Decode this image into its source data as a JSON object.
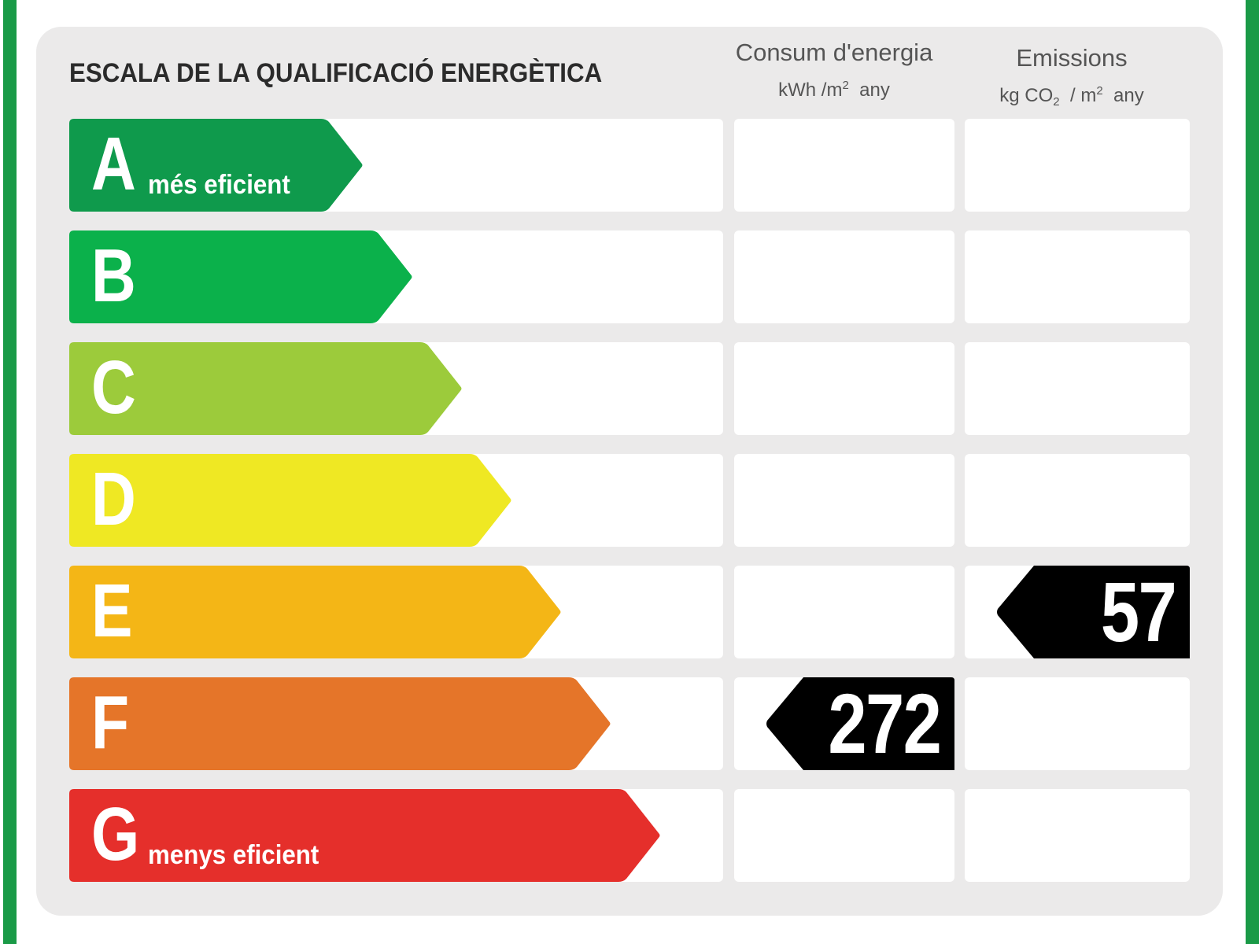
{
  "title": "ESCALA DE LA QUALIFICACIÓ ENERGÈTICA",
  "columns": {
    "energy": {
      "title": "Consum d'energia",
      "unit_prefix": "kWh /m",
      "unit_sup": "2",
      "unit_suffix": "any"
    },
    "emissions": {
      "title": "Emissions",
      "unit_prefix": "kg CO",
      "unit_sub": "2",
      "unit_mid": " / m",
      "unit_sup": "2",
      "unit_suffix": "any"
    }
  },
  "ratings": [
    {
      "letter": "A",
      "label": "més eficient",
      "color": "#0f9a4c"
    },
    {
      "letter": "B",
      "label": "",
      "color": "#0bb14b"
    },
    {
      "letter": "C",
      "label": "",
      "color": "#9ccb3b"
    },
    {
      "letter": "D",
      "label": "",
      "color": "#efe823"
    },
    {
      "letter": "E",
      "label": "",
      "color": "#f4b616"
    },
    {
      "letter": "F",
      "label": "",
      "color": "#e57529"
    },
    {
      "letter": "G",
      "label": "menys eficient",
      "color": "#e52f2b"
    }
  ],
  "energy_rating": {
    "class": "F",
    "value": "272"
  },
  "emissions_rating": {
    "class": "E",
    "value": "57"
  },
  "frame_color": "#1a9a47",
  "badge_color": "#000000"
}
